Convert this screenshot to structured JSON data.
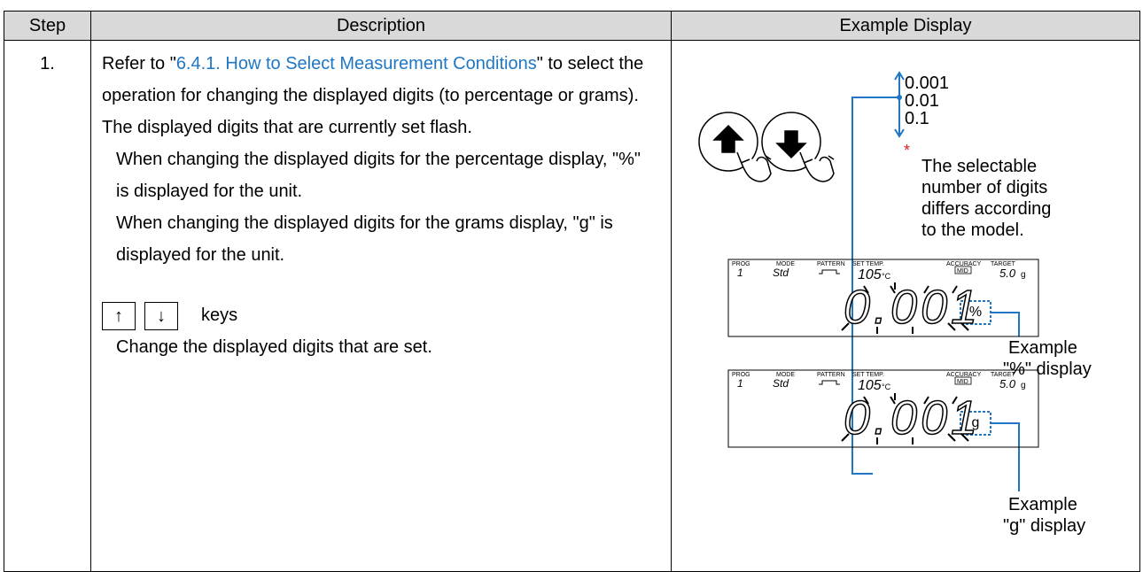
{
  "table": {
    "header": {
      "step": "Step",
      "description": "Description",
      "example": "Example Display"
    },
    "rows": [
      {
        "step": "1.",
        "description": {
          "intro_before": "Refer to \"",
          "link": "6.4.1. How to Select Measurement Conditions",
          "intro_after": "\" to select the operation for changing the displayed digits (to percentage or grams).",
          "flash": "The displayed digits that are currently set flash.",
          "percent_note": "When changing the displayed digits for the percentage display, \"%\" is displayed for the unit.",
          "grams_note": "When changing the displayed digits for the grams display, \"g\" is displayed for the unit.",
          "key_up": "↑",
          "key_down": "↓",
          "keys": "keys",
          "key_action": "Change the displayed digits that are set."
        },
        "example": {
          "options": [
            "0.001",
            "0.01",
            "0.1"
          ],
          "note_mark": "*",
          "note": [
            "The selectable",
            "number of digits",
            "differs according",
            "to the model."
          ],
          "lcd": {
            "prog": "PROG",
            "prog_value": "1",
            "mode": "MODE",
            "mode_value": "Std",
            "pattern": "PATTERN",
            "set_temp": "SET TEMP.",
            "temp_value": "105",
            "temp_unit": "°C",
            "accuracy": "ACCURACY",
            "accuracy_value": "MID",
            "target": "TARGET",
            "target_value": "5.0",
            "target_unit": "g",
            "reading": "0.001"
          },
          "percent_unit": "%",
          "percent_caption": [
            "Example",
            "\"%\" display"
          ],
          "grams_unit": "g",
          "grams_caption": [
            "Example",
            "\"g\" display"
          ]
        }
      }
    ]
  }
}
